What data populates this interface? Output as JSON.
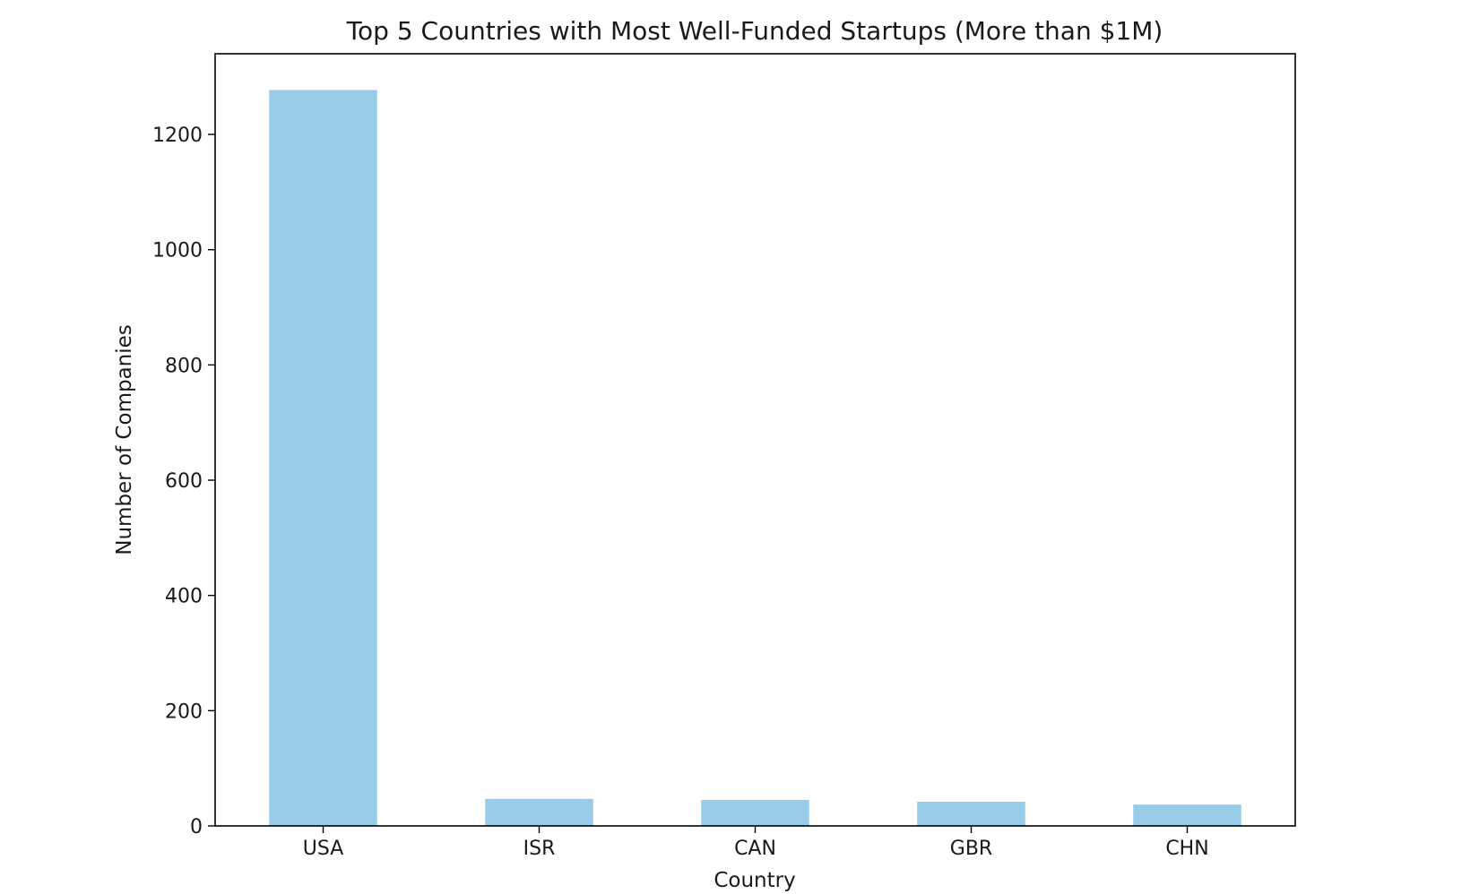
{
  "chart_data": {
    "type": "bar",
    "title": "Top 5 Countries with Most Well-Funded Startups (More than $1M)",
    "xlabel": "Country",
    "ylabel": "Number of Companies",
    "categories": [
      "USA",
      "ISR",
      "CAN",
      "GBR",
      "CHN"
    ],
    "values": [
      1277,
      47,
      45,
      42,
      37
    ],
    "ylim": [
      0,
      1340
    ],
    "yticks": [
      0,
      200,
      400,
      600,
      800,
      1000,
      1200
    ],
    "ytick_labels": [
      "0",
      "200",
      "400",
      "600",
      "800",
      "1000",
      "1200"
    ],
    "bar_color": "#97cbe8",
    "grid": false,
    "legend": "none"
  }
}
